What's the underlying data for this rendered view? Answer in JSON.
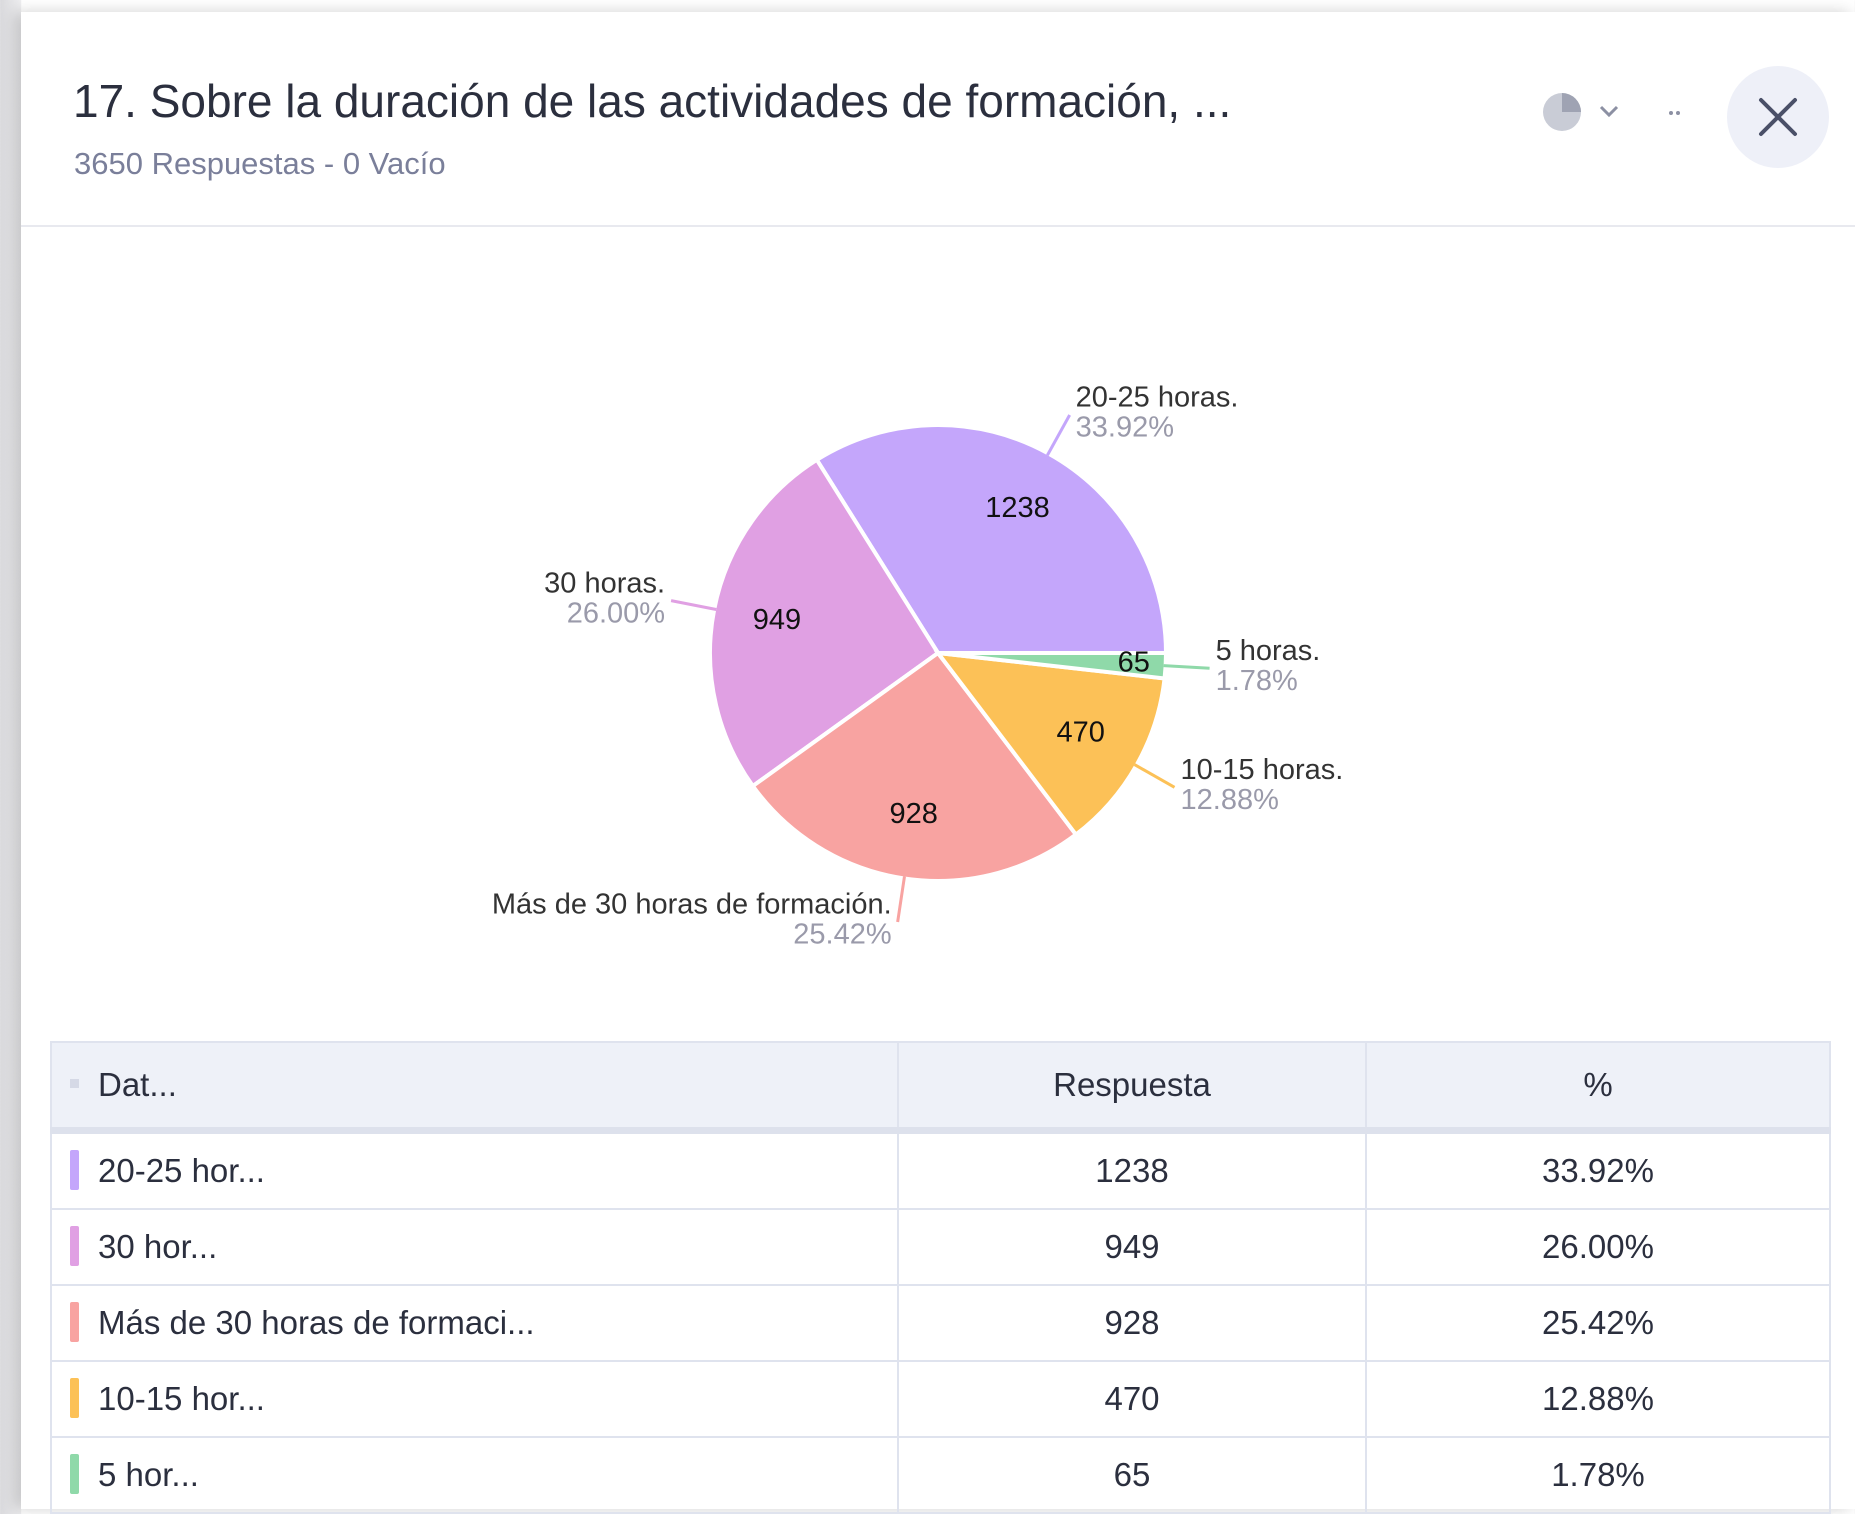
{
  "header": {
    "title": "17. Sobre la duración de las actividades de formación, ...",
    "subtitle": "3650 Respuestas - 0 Vacío"
  },
  "chart_data": {
    "type": "pie",
    "categories": [
      "20-25 horas.",
      "30 horas.",
      "Más de 30 horas de formación.",
      "10-15 horas.",
      "5 horas."
    ],
    "values": [
      1238,
      949,
      928,
      470,
      65
    ],
    "percentage_labels": [
      "33.92%",
      "26.00%",
      "25.42%",
      "12.88%",
      "1.78%"
    ],
    "colors": [
      "#c4a6fb",
      "#e0a0e3",
      "#f8a3a1",
      "#fcc157",
      "#8fd9a9"
    ]
  },
  "table": {
    "columns": [
      "Dat...",
      "Respuesta",
      "%"
    ],
    "rows": [
      [
        "20-25 hor...",
        1238,
        "33.92%"
      ],
      [
        "30 hor...",
        949,
        "26.00%"
      ],
      [
        "Más de 30 horas de formaci...",
        928,
        "25.42%"
      ],
      [
        "10-15 hor...",
        470,
        "12.88%"
      ],
      [
        "5 hor...",
        65,
        "1.78%"
      ]
    ]
  }
}
